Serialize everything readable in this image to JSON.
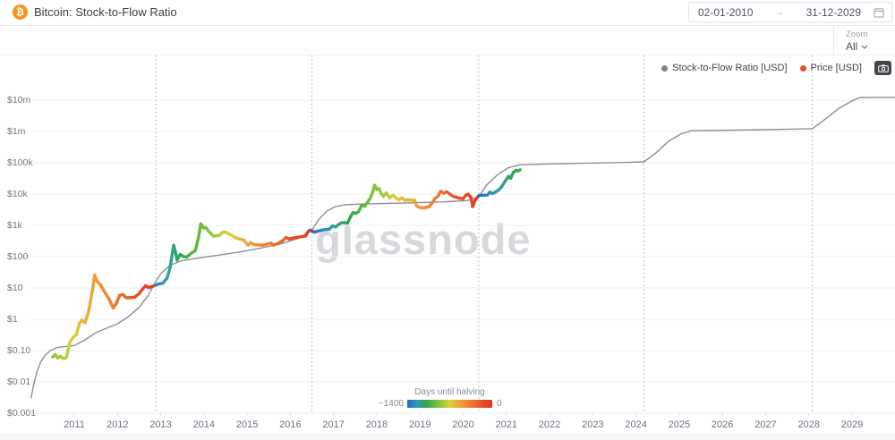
{
  "header": {
    "title": "Bitcoin: Stock-to-Flow Ratio",
    "date_from": "02-01-2010",
    "date_to": "31-12-2029",
    "arrow": "→"
  },
  "toolbar": {
    "zoom_label": "Zoom",
    "zoom_value": "All"
  },
  "legend": {
    "items": [
      {
        "label": "Stock-to-Flow Ratio [USD]",
        "color": "#7d828c"
      },
      {
        "label": "Price [USD]",
        "color": "#e8502b"
      }
    ]
  },
  "watermark": "glassnode",
  "colors": {
    "brand_bitcoin": "#f7931a",
    "model_line": "#8a8f98",
    "halving_line": "#a8adb5",
    "grid_line": "#edeff1"
  },
  "chart_data": {
    "type": "line",
    "title": "Bitcoin: Stock-to-Flow Ratio",
    "y_axis": {
      "scale": "log",
      "unit": "USD",
      "tick_labels": [
        "$10m",
        "$1m",
        "$100k",
        "$10k",
        "$1k",
        "$100",
        "$10",
        "$1",
        "$0.10",
        "$0.01",
        "$0.001"
      ],
      "tick_values": [
        10000000,
        1000000,
        100000,
        10000,
        1000,
        100,
        10,
        1,
        0.1,
        0.01,
        0.001
      ],
      "range_usd": [
        0.001,
        10000000
      ]
    },
    "x_axis": {
      "labels": [
        "2011",
        "2012",
        "2013",
        "2014",
        "2015",
        "2016",
        "2017",
        "2018",
        "2019",
        "2020",
        "2021",
        "2022",
        "2023",
        "2024",
        "2025",
        "2026",
        "2027",
        "2028",
        "2029"
      ],
      "range_years": [
        2010.0,
        2030.0
      ]
    },
    "halvings_decimal_years": [
      2012.885,
      2016.5,
      2020.36,
      2024.18,
      2028.08
    ],
    "color_scale": {
      "label": "Days until halving",
      "min_label": "~1400",
      "max_label": "0",
      "stops": [
        [
          0.0,
          "#e23b26"
        ],
        [
          0.1,
          "#e84a28"
        ],
        [
          0.22,
          "#ee6e2d"
        ],
        [
          0.36,
          "#f29a36"
        ],
        [
          0.5,
          "#d9d23a"
        ],
        [
          0.62,
          "#86c43a"
        ],
        [
          0.78,
          "#2fa64b"
        ],
        [
          0.88,
          "#2d9fae"
        ],
        [
          1.0,
          "#2e64c8"
        ]
      ]
    },
    "series": [
      {
        "name": "Stock-to-Flow Ratio [USD]",
        "color": "#8a8f98",
        "points": [
          [
            2010.0,
            0.003
          ],
          [
            2010.06,
            0.008
          ],
          [
            2010.13,
            0.02
          ],
          [
            2010.22,
            0.042
          ],
          [
            2010.33,
            0.072
          ],
          [
            2010.45,
            0.1
          ],
          [
            2010.6,
            0.125
          ],
          [
            2010.8,
            0.135
          ],
          [
            2011.0,
            0.145
          ],
          [
            2011.25,
            0.22
          ],
          [
            2011.5,
            0.37
          ],
          [
            2011.75,
            0.52
          ],
          [
            2012.0,
            0.72
          ],
          [
            2012.25,
            1.2
          ],
          [
            2012.5,
            2.4
          ],
          [
            2012.7,
            5.5
          ],
          [
            2012.885,
            16
          ],
          [
            2013.0,
            28
          ],
          [
            2013.2,
            52
          ],
          [
            2013.5,
            75
          ],
          [
            2013.9,
            92
          ],
          [
            2014.3,
            110
          ],
          [
            2014.8,
            140
          ],
          [
            2015.3,
            185
          ],
          [
            2015.8,
            260
          ],
          [
            2016.2,
            390
          ],
          [
            2016.5,
            700
          ],
          [
            2016.65,
            1500
          ],
          [
            2016.85,
            2900
          ],
          [
            2017.05,
            4000
          ],
          [
            2017.3,
            4600
          ],
          [
            2017.6,
            4800
          ],
          [
            2018.5,
            5100
          ],
          [
            2019.5,
            5600
          ],
          [
            2020.1,
            6200
          ],
          [
            2020.36,
            8200
          ],
          [
            2020.55,
            20000
          ],
          [
            2020.8,
            42000
          ],
          [
            2021.05,
            70000
          ],
          [
            2021.3,
            86000
          ],
          [
            2021.8,
            90000
          ],
          [
            2022.8,
            96000
          ],
          [
            2023.8,
            103000
          ],
          [
            2024.18,
            107000
          ],
          [
            2024.45,
            200000
          ],
          [
            2024.75,
            480000
          ],
          [
            2025.05,
            850000
          ],
          [
            2025.3,
            1060000
          ],
          [
            2026.0,
            1090000
          ],
          [
            2027.0,
            1140000
          ],
          [
            2028.08,
            1230000
          ],
          [
            2028.35,
            2300000
          ],
          [
            2028.7,
            5500000
          ],
          [
            2029.0,
            9500000
          ],
          [
            2029.18,
            12200000
          ],
          [
            2030.0,
            12300000
          ]
        ]
      },
      {
        "name": "Price [USD]",
        "color_by": "days_until_halving",
        "points": [
          [
            2010.5,
            0.062
          ],
          [
            2010.56,
            0.075
          ],
          [
            2010.62,
            0.058
          ],
          [
            2010.68,
            0.066
          ],
          [
            2010.75,
            0.055
          ],
          [
            2010.82,
            0.061
          ],
          [
            2010.9,
            0.19
          ],
          [
            2010.97,
            0.26
          ],
          [
            2011.05,
            0.32
          ],
          [
            2011.12,
            0.75
          ],
          [
            2011.18,
            0.95
          ],
          [
            2011.25,
            0.78
          ],
          [
            2011.33,
            1.7
          ],
          [
            2011.42,
            8.5
          ],
          [
            2011.47,
            26
          ],
          [
            2011.53,
            16
          ],
          [
            2011.6,
            13
          ],
          [
            2011.7,
            7.5
          ],
          [
            2011.8,
            4.6
          ],
          [
            2011.9,
            2.3
          ],
          [
            2011.97,
            3.1
          ],
          [
            2012.05,
            5.8
          ],
          [
            2012.12,
            6.2
          ],
          [
            2012.2,
            4.9
          ],
          [
            2012.3,
            4.9
          ],
          [
            2012.4,
            5.1
          ],
          [
            2012.5,
            6.6
          ],
          [
            2012.58,
            9.2
          ],
          [
            2012.65,
            11.8
          ],
          [
            2012.72,
            10.3
          ],
          [
            2012.8,
            11.2
          ],
          [
            2012.885,
            12.3
          ],
          [
            2012.95,
            13.4
          ],
          [
            2013.05,
            14.2
          ],
          [
            2013.15,
            21
          ],
          [
            2013.22,
            47
          ],
          [
            2013.3,
            230
          ],
          [
            2013.34,
            145
          ],
          [
            2013.38,
            78
          ],
          [
            2013.45,
            117
          ],
          [
            2013.52,
            103
          ],
          [
            2013.6,
            97
          ],
          [
            2013.7,
            126
          ],
          [
            2013.8,
            155
          ],
          [
            2013.88,
            430
          ],
          [
            2013.93,
            1120
          ],
          [
            2014.0,
            820
          ],
          [
            2014.05,
            850
          ],
          [
            2014.12,
            620
          ],
          [
            2014.22,
            450
          ],
          [
            2014.35,
            480
          ],
          [
            2014.45,
            620
          ],
          [
            2014.52,
            590
          ],
          [
            2014.62,
            500
          ],
          [
            2014.72,
            410
          ],
          [
            2014.82,
            370
          ],
          [
            2014.92,
            340
          ],
          [
            2015.02,
            230
          ],
          [
            2015.08,
            280
          ],
          [
            2015.15,
            245
          ],
          [
            2015.25,
            238
          ],
          [
            2015.35,
            232
          ],
          [
            2015.45,
            250
          ],
          [
            2015.55,
            270
          ],
          [
            2015.62,
            235
          ],
          [
            2015.72,
            265
          ],
          [
            2015.82,
            320
          ],
          [
            2015.9,
            410
          ],
          [
            2015.97,
            370
          ],
          [
            2016.05,
            390
          ],
          [
            2016.15,
            415
          ],
          [
            2016.25,
            435
          ],
          [
            2016.35,
            455
          ],
          [
            2016.42,
            660
          ],
          [
            2016.47,
            700
          ],
          [
            2016.5,
            655
          ],
          [
            2016.56,
            610
          ],
          [
            2016.62,
            640
          ],
          [
            2016.7,
            690
          ],
          [
            2016.8,
            730
          ],
          [
            2016.9,
            750
          ],
          [
            2016.98,
            965
          ],
          [
            2017.05,
            890
          ],
          [
            2017.1,
            1030
          ],
          [
            2017.18,
            1200
          ],
          [
            2017.25,
            1230
          ],
          [
            2017.32,
            1180
          ],
          [
            2017.4,
            1950
          ],
          [
            2017.45,
            2550
          ],
          [
            2017.52,
            2450
          ],
          [
            2017.58,
            2750
          ],
          [
            2017.65,
            4300
          ],
          [
            2017.72,
            4100
          ],
          [
            2017.8,
            5800
          ],
          [
            2017.85,
            7400
          ],
          [
            2017.9,
            11000
          ],
          [
            2017.95,
            19200
          ],
          [
            2018.0,
            14000
          ],
          [
            2018.05,
            15000
          ],
          [
            2018.1,
            10500
          ],
          [
            2018.15,
            8500
          ],
          [
            2018.22,
            10800
          ],
          [
            2018.3,
            7600
          ],
          [
            2018.38,
            9200
          ],
          [
            2018.45,
            7400
          ],
          [
            2018.52,
            6500
          ],
          [
            2018.58,
            7500
          ],
          [
            2018.65,
            6400
          ],
          [
            2018.72,
            6500
          ],
          [
            2018.8,
            6400
          ],
          [
            2018.88,
            6300
          ],
          [
            2018.92,
            4200
          ],
          [
            2018.98,
            3800
          ],
          [
            2019.05,
            3600
          ],
          [
            2019.12,
            3700
          ],
          [
            2019.2,
            3900
          ],
          [
            2019.28,
            5100
          ],
          [
            2019.35,
            7200
          ],
          [
            2019.42,
            8700
          ],
          [
            2019.48,
            12300
          ],
          [
            2019.55,
            10700
          ],
          [
            2019.62,
            11800
          ],
          [
            2019.7,
            9800
          ],
          [
            2019.78,
            8300
          ],
          [
            2019.85,
            7900
          ],
          [
            2019.92,
            7300
          ],
          [
            2020.0,
            7200
          ],
          [
            2020.07,
            9400
          ],
          [
            2020.12,
            9900
          ],
          [
            2020.18,
            7900
          ],
          [
            2020.22,
            4000
          ],
          [
            2020.28,
            6400
          ],
          [
            2020.33,
            7800
          ],
          [
            2020.36,
            8800
          ],
          [
            2020.42,
            9200
          ],
          [
            2020.5,
            9100
          ],
          [
            2020.56,
            9300
          ],
          [
            2020.62,
            11500
          ],
          [
            2020.68,
            10400
          ],
          [
            2020.75,
            11600
          ],
          [
            2020.82,
            13500
          ],
          [
            2020.88,
            16500
          ],
          [
            2020.95,
            23000
          ],
          [
            2021.0,
            29500
          ],
          [
            2021.05,
            36500
          ],
          [
            2021.1,
            32000
          ],
          [
            2021.16,
            49000
          ],
          [
            2021.22,
            57000
          ],
          [
            2021.27,
            54500
          ],
          [
            2021.32,
            59500
          ]
        ]
      }
    ],
    "legend_position": "top-right",
    "grid": "horizontal-only"
  }
}
